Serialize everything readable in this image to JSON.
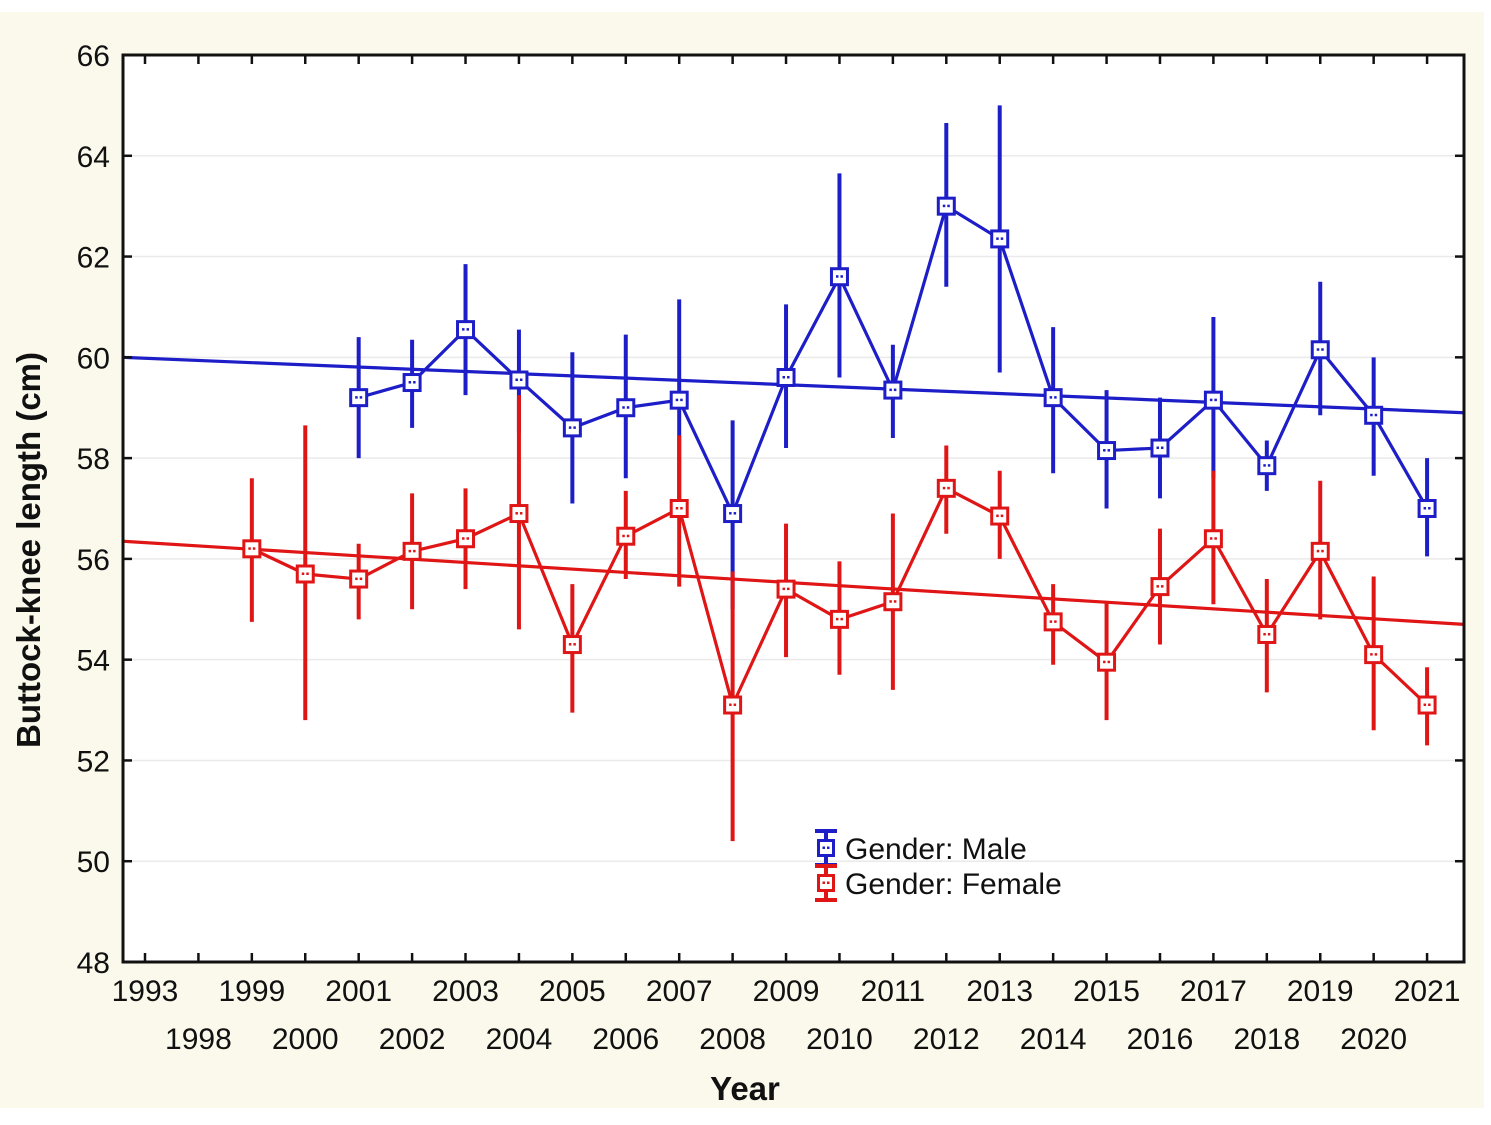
{
  "chart_data": {
    "type": "line",
    "title": "",
    "xlabel": "Year",
    "ylabel": "Buttock-knee length (cm)",
    "ylim": [
      48,
      66
    ],
    "ytick_step": 2,
    "grid": "horizontal",
    "categories": [
      1993,
      1998,
      1999,
      2000,
      2001,
      2002,
      2003,
      2004,
      2005,
      2006,
      2007,
      2008,
      2009,
      2010,
      2011,
      2012,
      2013,
      2014,
      2015,
      2016,
      2017,
      2018,
      2019,
      2020,
      2021
    ],
    "legend": {
      "position": "inside-bottom-center",
      "items": [
        {
          "label": "Gender: Male",
          "color": "#1e1ec8",
          "symbol": "error-bar-square"
        },
        {
          "label": "Gender: Female",
          "color": "#e01515",
          "symbol": "error-bar-square"
        }
      ]
    },
    "series": [
      {
        "name": "Gender: Male",
        "color": "#1e1ec8",
        "marker": "open-square",
        "trend_line": {
          "start_value": 60.0,
          "end_value": 58.9
        },
        "points": [
          {
            "year": 2001,
            "mean": 59.2,
            "ci_low": 58.0,
            "ci_high": 60.4
          },
          {
            "year": 2002,
            "mean": 59.5,
            "ci_low": 58.6,
            "ci_high": 60.35
          },
          {
            "year": 2003,
            "mean": 60.55,
            "ci_low": 59.25,
            "ci_high": 61.85
          },
          {
            "year": 2004,
            "mean": 59.55,
            "ci_low": 58.5,
            "ci_high": 60.55
          },
          {
            "year": 2005,
            "mean": 58.6,
            "ci_low": 57.1,
            "ci_high": 60.1
          },
          {
            "year": 2006,
            "mean": 59.0,
            "ci_low": 57.6,
            "ci_high": 60.45
          },
          {
            "year": 2007,
            "mean": 59.15,
            "ci_low": 57.1,
            "ci_high": 61.15
          },
          {
            "year": 2008,
            "mean": 56.9,
            "ci_low": 55.0,
            "ci_high": 58.75
          },
          {
            "year": 2009,
            "mean": 59.6,
            "ci_low": 58.2,
            "ci_high": 61.05
          },
          {
            "year": 2010,
            "mean": 61.6,
            "ci_low": 59.6,
            "ci_high": 63.65
          },
          {
            "year": 2011,
            "mean": 59.35,
            "ci_low": 58.4,
            "ci_high": 60.25
          },
          {
            "year": 2012,
            "mean": 63.0,
            "ci_low": 61.4,
            "ci_high": 64.65
          },
          {
            "year": 2013,
            "mean": 62.35,
            "ci_low": 59.7,
            "ci_high": 65.0
          },
          {
            "year": 2014,
            "mean": 59.2,
            "ci_low": 57.7,
            "ci_high": 60.6
          },
          {
            "year": 2015,
            "mean": 58.15,
            "ci_low": 57.0,
            "ci_high": 59.35
          },
          {
            "year": 2016,
            "mean": 58.2,
            "ci_low": 57.2,
            "ci_high": 59.2
          },
          {
            "year": 2017,
            "mean": 59.15,
            "ci_low": 57.6,
            "ci_high": 60.8
          },
          {
            "year": 2018,
            "mean": 57.85,
            "ci_low": 57.35,
            "ci_high": 58.35
          },
          {
            "year": 2019,
            "mean": 60.15,
            "ci_low": 58.85,
            "ci_high": 61.5
          },
          {
            "year": 2020,
            "mean": 58.85,
            "ci_low": 57.65,
            "ci_high": 60.0
          },
          {
            "year": 2021,
            "mean": 57.0,
            "ci_low": 56.05,
            "ci_high": 58.0
          }
        ]
      },
      {
        "name": "Gender: Female",
        "color": "#e01515",
        "marker": "open-square",
        "trend_line": {
          "start_value": 56.35,
          "end_value": 54.7
        },
        "points": [
          {
            "year": 1999,
            "mean": 56.2,
            "ci_low": 54.75,
            "ci_high": 57.6
          },
          {
            "year": 2000,
            "mean": 55.7,
            "ci_low": 52.8,
            "ci_high": 58.65
          },
          {
            "year": 2001,
            "mean": 55.6,
            "ci_low": 54.8,
            "ci_high": 56.3
          },
          {
            "year": 2002,
            "mean": 56.15,
            "ci_low": 55.0,
            "ci_high": 57.3
          },
          {
            "year": 2003,
            "mean": 56.4,
            "ci_low": 55.4,
            "ci_high": 57.4
          },
          {
            "year": 2004,
            "mean": 56.9,
            "ci_low": 54.6,
            "ci_high": 59.25
          },
          {
            "year": 2005,
            "mean": 54.3,
            "ci_low": 52.95,
            "ci_high": 55.5
          },
          {
            "year": 2006,
            "mean": 56.45,
            "ci_low": 55.6,
            "ci_high": 57.35
          },
          {
            "year": 2007,
            "mean": 57.0,
            "ci_low": 55.45,
            "ci_high": 58.45
          },
          {
            "year": 2008,
            "mean": 53.1,
            "ci_low": 50.4,
            "ci_high": 55.75
          },
          {
            "year": 2009,
            "mean": 55.4,
            "ci_low": 54.05,
            "ci_high": 56.7
          },
          {
            "year": 2010,
            "mean": 54.8,
            "ci_low": 53.7,
            "ci_high": 55.95
          },
          {
            "year": 2011,
            "mean": 55.15,
            "ci_low": 53.4,
            "ci_high": 56.9
          },
          {
            "year": 2012,
            "mean": 57.4,
            "ci_low": 56.5,
            "ci_high": 58.25
          },
          {
            "year": 2013,
            "mean": 56.85,
            "ci_low": 56.0,
            "ci_high": 57.75
          },
          {
            "year": 2014,
            "mean": 54.75,
            "ci_low": 53.9,
            "ci_high": 55.5
          },
          {
            "year": 2015,
            "mean": 53.95,
            "ci_low": 52.8,
            "ci_high": 55.15
          },
          {
            "year": 2016,
            "mean": 55.45,
            "ci_low": 54.3,
            "ci_high": 56.6
          },
          {
            "year": 2017,
            "mean": 56.4,
            "ci_low": 55.1,
            "ci_high": 57.75
          },
          {
            "year": 2018,
            "mean": 54.5,
            "ci_low": 53.35,
            "ci_high": 55.6
          },
          {
            "year": 2019,
            "mean": 56.15,
            "ci_low": 54.8,
            "ci_high": 57.55
          },
          {
            "year": 2020,
            "mean": 54.1,
            "ci_low": 52.6,
            "ci_high": 55.65
          },
          {
            "year": 2021,
            "mean": 53.1,
            "ci_low": 52.3,
            "ci_high": 53.85
          }
        ]
      }
    ],
    "colors": {
      "male": "#1e1ec8",
      "female": "#e01515",
      "background": "#fbf9ec",
      "plot_background": "#ffffff",
      "gridline": "#eaeaea",
      "axis": "#111111"
    }
  }
}
